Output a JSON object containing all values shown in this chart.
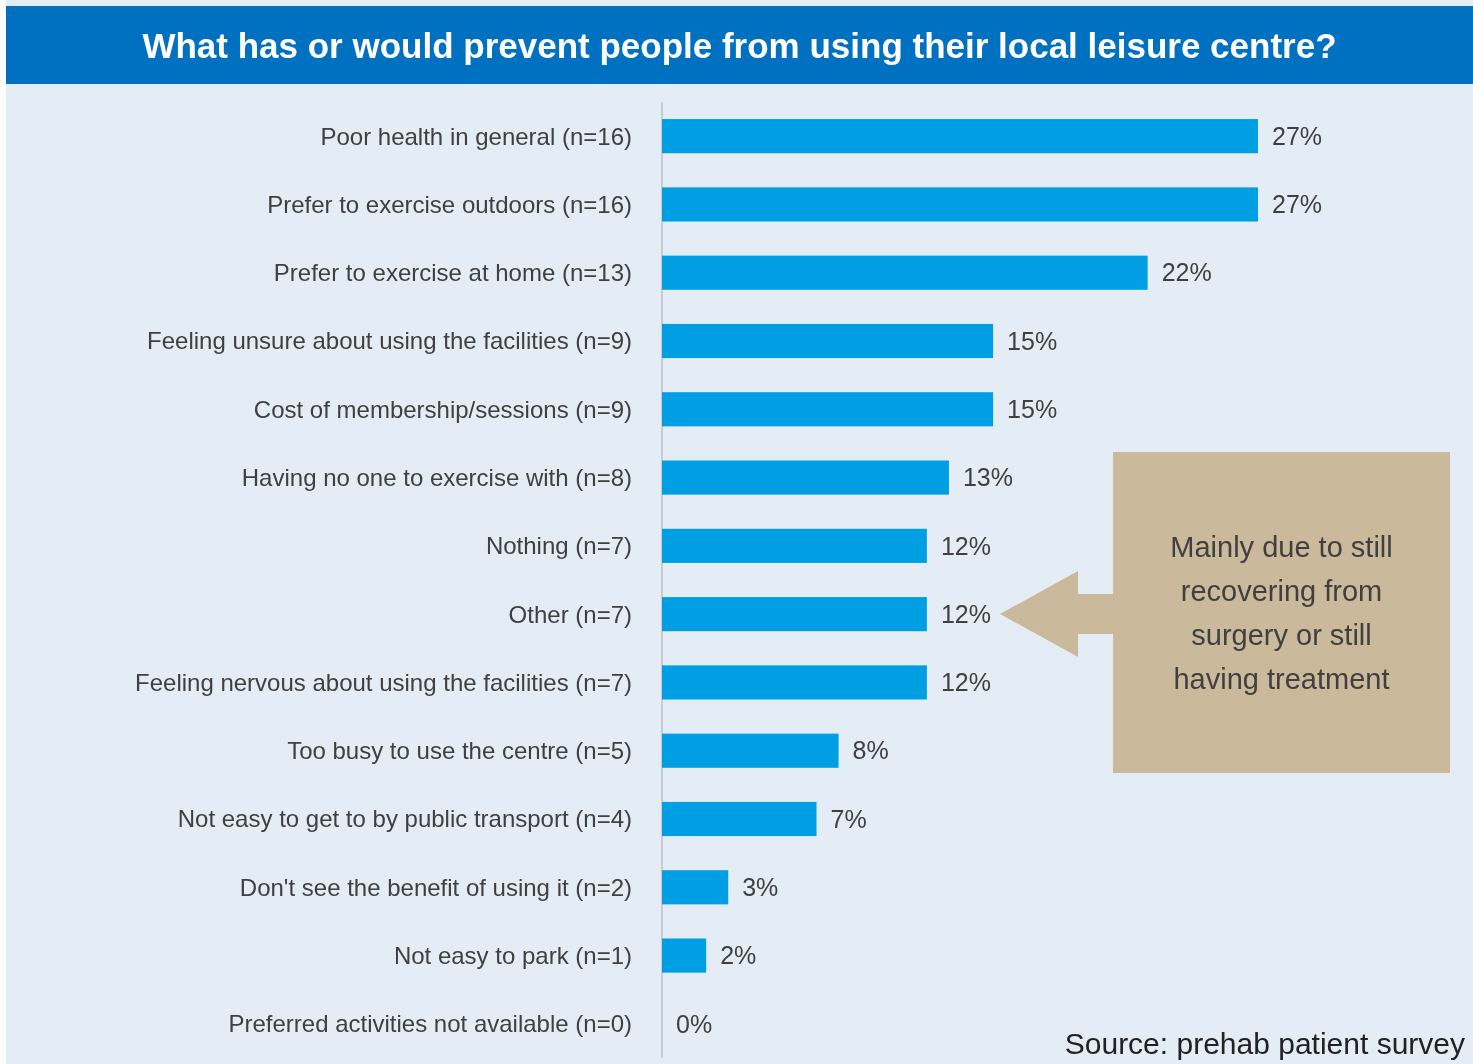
{
  "chart_data": {
    "type": "bar",
    "orientation": "horizontal",
    "title": "What has or would prevent people from using their local leisure centre?",
    "categories": [
      "Poor health in general (n=16)",
      "Prefer to exercise outdoors (n=16)",
      "Prefer to exercise at home (n=13)",
      "Feeling unsure about using the facilities (n=9)",
      "Cost of membership/sessions (n=9)",
      "Having no one to exercise with (n=8)",
      "Nothing (n=7)",
      "Other (n=7)",
      "Feeling nervous about using the facilities (n=7)",
      "Too busy to use the centre (n=5)",
      "Not easy to get to by public transport (n=4)",
      "Don't see the benefit of using it (n=2)",
      "Not easy to park (n=1)",
      "Preferred activities not available (n=0)"
    ],
    "values": [
      27,
      27,
      22,
      15,
      15,
      13,
      12,
      12,
      12,
      8,
      7,
      3,
      2,
      0
    ],
    "value_labels": [
      "27%",
      "27%",
      "22%",
      "15%",
      "15%",
      "13%",
      "12%",
      "12%",
      "12%",
      "8%",
      "7%",
      "3%",
      "2%",
      "0%"
    ],
    "color": "#009fe3",
    "annotations": [
      "Mainly due to still recovering from surgery or still having treatment",
      "Source: prehab patient survey"
    ]
  }
}
